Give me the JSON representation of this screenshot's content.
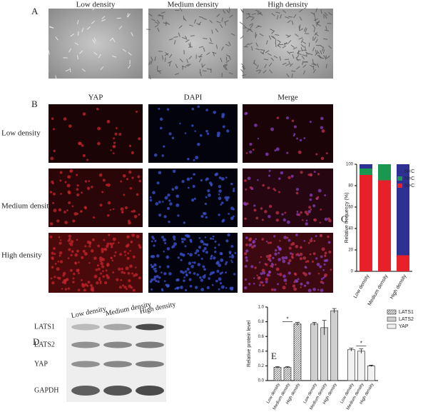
{
  "panel_labels": [
    "A",
    "B",
    "C",
    "D",
    "E"
  ],
  "panel_a": {
    "columns": [
      "Low density",
      "Medium density",
      "High density"
    ]
  },
  "panel_b": {
    "columns": [
      "YAP",
      "DAPI",
      "Merge"
    ],
    "rows": [
      "Low density",
      "Medium density",
      "High density"
    ]
  },
  "panel_d": {
    "columns": [
      "Low density",
      "Medium density",
      "High density"
    ],
    "rows": [
      "LATS1",
      "LATS2",
      "YAP",
      "GAPDH"
    ]
  },
  "chart_data": [
    {
      "type": "stacked_bar",
      "y_label": "Relative frequency (%)",
      "categories": [
        "Low density",
        "Medium density",
        "High density"
      ],
      "series": [
        {
          "name": "N>C",
          "color": "#e8202a",
          "values": [
            90,
            85,
            15
          ]
        },
        {
          "name": "N=C",
          "color": "#1a9850",
          "values": [
            6,
            15,
            0
          ]
        },
        {
          "name": "N<C",
          "color": "#2e3192",
          "values": [
            4,
            0,
            85
          ]
        }
      ],
      "ylim": [
        0,
        100
      ],
      "yticks": [
        0,
        20,
        40,
        60,
        80,
        100
      ],
      "legend": "upper right"
    },
    {
      "type": "grouped_bar",
      "y_label": "Relative protein level",
      "categories": [
        "Low density",
        "Medium density",
        "High density"
      ],
      "series": [
        {
          "name": "LATS1",
          "color": "#9a9a9a",
          "values": [
            0.18,
            0.18,
            0.77
          ],
          "errors": [
            0.01,
            0.01,
            0.02
          ]
        },
        {
          "name": "LATS2",
          "color": "#cfcfcf",
          "values": [
            0.77,
            0.72,
            0.95
          ],
          "errors": [
            0.02,
            0.1,
            0.03
          ]
        },
        {
          "name": "YAP",
          "color": "#f2f2f2",
          "values": [
            0.42,
            0.4,
            0.2
          ],
          "errors": [
            0.02,
            0.03,
            0.01
          ]
        }
      ],
      "ylim": [
        0,
        1
      ],
      "yticks": [
        {
          "value": 0,
          "label": "0.0"
        },
        0.2,
        0.4,
        0.6,
        0.8,
        {
          "value": 1,
          "label": "1.0"
        }
      ],
      "annotations": [
        "*",
        "*"
      ],
      "legend": "upper right"
    }
  ]
}
